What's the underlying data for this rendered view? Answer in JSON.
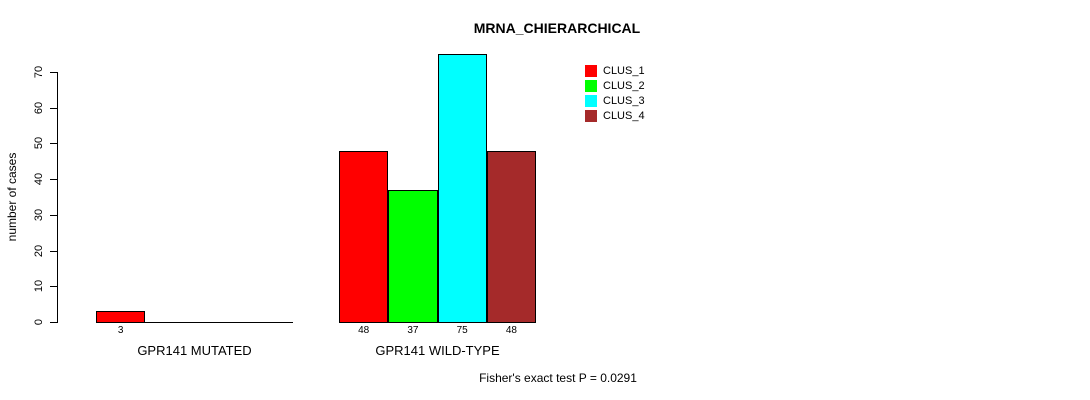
{
  "chart_data": {
    "type": "bar",
    "title": "MRNA_CHIERARCHICAL",
    "xlabel": "",
    "ylabel": "number of cases",
    "categories": [
      "GPR141 MUTATED",
      "GPR141 WILD-TYPE"
    ],
    "series": [
      {
        "name": "CLUS_1",
        "color": "#ff0000",
        "values": [
          3,
          48
        ]
      },
      {
        "name": "CLUS_2",
        "color": "#00ff00",
        "values": [
          0,
          37
        ]
      },
      {
        "name": "CLUS_3",
        "color": "#00ffff",
        "values": [
          0,
          75
        ]
      },
      {
        "name": "CLUS_4",
        "color": "#a52a2a",
        "values": [
          0,
          48
        ]
      }
    ],
    "bar_value_labels_shown": [
      "3",
      "48",
      "37",
      "75",
      "48"
    ],
    "bar_value_label_rule": "only values greater than 0 are labeled",
    "yticks": [
      0,
      10,
      20,
      30,
      40,
      50,
      60,
      70
    ],
    "ylim": [
      0,
      70
    ],
    "grid": false,
    "legend": {
      "position": "top-right",
      "entries": [
        "CLUS_1",
        "CLUS_2",
        "CLUS_3",
        "CLUS_4"
      ]
    },
    "annotation": "Fisher's exact test P = 0.0291"
  }
}
